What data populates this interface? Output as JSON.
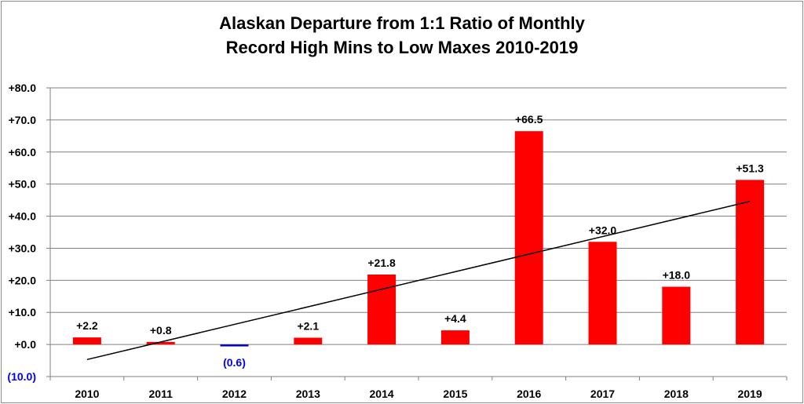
{
  "chart_data": {
    "type": "bar",
    "title_line1": "Alaskan Departure from 1:1 Ratio of Monthly",
    "title_line2": "Record High Mins to Low Maxes 2010-2019",
    "categories": [
      "2010",
      "2011",
      "2012",
      "2013",
      "2014",
      "2015",
      "2016",
      "2017",
      "2018",
      "2019"
    ],
    "values": [
      2.2,
      0.8,
      -0.6,
      2.1,
      21.8,
      4.4,
      66.5,
      32.0,
      18.0,
      51.3
    ],
    "data_labels": [
      "+2.2",
      "+0.8",
      "(0.6)",
      "+2.1",
      "+21.8",
      "+4.4",
      "+66.5",
      "+32.0",
      "+18.0",
      "+51.3"
    ],
    "ylim": [
      -10,
      80
    ],
    "yticks": [
      -10,
      0,
      10,
      20,
      30,
      40,
      50,
      60,
      70,
      80
    ],
    "ytick_labels": [
      "(10.0)",
      "+0.0",
      "+10.0",
      "+20.0",
      "+30.0",
      "+40.0",
      "+50.0",
      "+60.0",
      "+70.0",
      "+80.0"
    ],
    "grid": true,
    "trendline": {
      "type": "linear",
      "start": -4.7,
      "end": 44.6
    },
    "colors": {
      "positive_bar": "#ff0000",
      "negative_bar": "#0000cc",
      "negative_label": "#0000ff",
      "positive_label": "#000000",
      "grid": "#808080",
      "trendline": "#000000"
    }
  }
}
